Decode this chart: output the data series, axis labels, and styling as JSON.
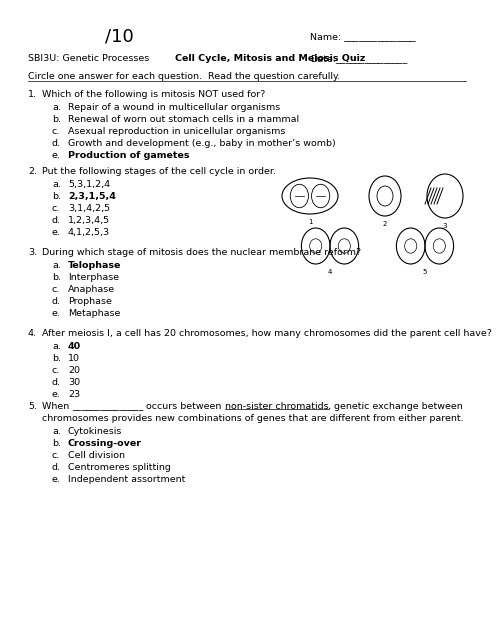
{
  "title_score": "/10",
  "name_label": "Name: _______________",
  "date_label": "Date:_______________",
  "course": "SBI3U: Genetic Processes",
  "quiz_title": "Cell Cycle, Mitosis and Meiosis Quiz",
  "instruction": "Circle one answer for each question.  Read the question carefully.",
  "questions": [
    {
      "num": "1.",
      "text": "Which of the following is mitosis NOT used for?",
      "options": [
        {
          "letter": "a.",
          "text": "Repair of a wound in multicellular organisms",
          "bold": false
        },
        {
          "letter": "b.",
          "text": "Renewal of worn out stomach cells in a mammal",
          "bold": false
        },
        {
          "letter": "c.",
          "text": "Asexual reproduction in unicellular organisms",
          "bold": false
        },
        {
          "letter": "d.",
          "text": "Growth and development (e.g., baby in mother’s womb)",
          "bold": false
        },
        {
          "letter": "e.",
          "text": "Production of gametes",
          "bold": true
        }
      ]
    },
    {
      "num": "2.",
      "text": "Put the following stages of the cell cycle in order.",
      "options": [
        {
          "letter": "a.",
          "text": "5,3,1,2,4",
          "bold": false
        },
        {
          "letter": "b.",
          "text": "2,3,1,5,4",
          "bold": true
        },
        {
          "letter": "c.",
          "text": "3,1,4,2,5",
          "bold": false
        },
        {
          "letter": "d.",
          "text": "1,2,3,4,5",
          "bold": false
        },
        {
          "letter": "e.",
          "text": "4,1,2,5,3",
          "bold": false
        }
      ]
    },
    {
      "num": "3.",
      "text": "During which stage of mitosis does the nuclear membrane reform?",
      "options": [
        {
          "letter": "a.",
          "text": "Telophase",
          "bold": true
        },
        {
          "letter": "b.",
          "text": "Interphase",
          "bold": false
        },
        {
          "letter": "c.",
          "text": "Anaphase",
          "bold": false
        },
        {
          "letter": "d.",
          "text": "Prophase",
          "bold": false
        },
        {
          "letter": "e.",
          "text": "Metaphase",
          "bold": false
        }
      ]
    },
    {
      "num": "4.",
      "text": "After meiosis I, a cell has 20 chromosomes, how many chromosomes did the parent cell have?",
      "options": [
        {
          "letter": "a.",
          "text": "40",
          "bold": true
        },
        {
          "letter": "b.",
          "text": "10",
          "bold": false
        },
        {
          "letter": "c.",
          "text": "20",
          "bold": false
        },
        {
          "letter": "d.",
          "text": "30",
          "bold": false
        },
        {
          "letter": "e.",
          "text": "23",
          "bold": false
        }
      ]
    }
  ],
  "q5_text1": "When ",
  "q5_blank": "_______________",
  "q5_text2": " occurs between ",
  "q5_underlined": "non-sister chromatids",
  "q5_text3": ", genetic exchange between",
  "q5_line2": "chromosomes provides new combinations of genes that are different from either parent.",
  "q5_options": [
    {
      "letter": "a.",
      "text": "Cytokinesis",
      "bold": false
    },
    {
      "letter": "b.",
      "text": "Crossing-over",
      "bold": true
    },
    {
      "letter": "c.",
      "text": "Cell division",
      "bold": false
    },
    {
      "letter": "d.",
      "text": "Centromeres splitting",
      "bold": false
    },
    {
      "letter": "e.",
      "text": "Independent assortment",
      "bold": false
    }
  ],
  "bg_color": "#ffffff",
  "text_color": "#000000",
  "font_size": 6.8,
  "title_font_size": 13
}
